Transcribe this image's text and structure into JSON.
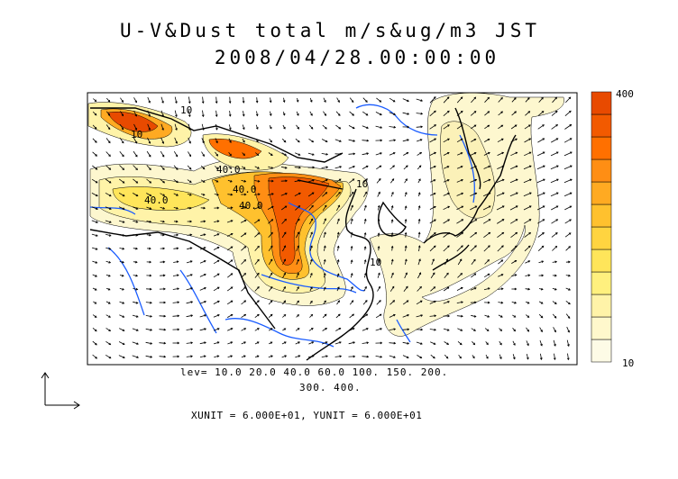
{
  "title": {
    "line1": "U-V&Dust total m/s&ug/m3 JST",
    "line2": "2008/04/28.00:00:00"
  },
  "contours": {
    "line1": "lev= 10.0 20.0 40.0 60.0 100. 150. 200.",
    "line2": "300. 400.",
    "inline_labels": [
      "40.0",
      "40.0",
      "40.0",
      "10",
      "10",
      "10",
      "10",
      "40.0"
    ]
  },
  "units": {
    "text": "XUNIT = 6.000E+01, YUNIT = 6.000E+01"
  },
  "colorbar": {
    "max": "400",
    "min": "10",
    "colors": [
      "#fdfbe6",
      "#fff8cc",
      "#fff3a8",
      "#fff07e",
      "#ffe55a",
      "#ffd440",
      "#ffc12e",
      "#ffaa22",
      "#ff8e14",
      "#ff7000",
      "#f25a00",
      "#e84a00"
    ]
  },
  "colors": {
    "coast": "#000000",
    "rivers": "#1a5cff",
    "frame": "#000000"
  }
}
